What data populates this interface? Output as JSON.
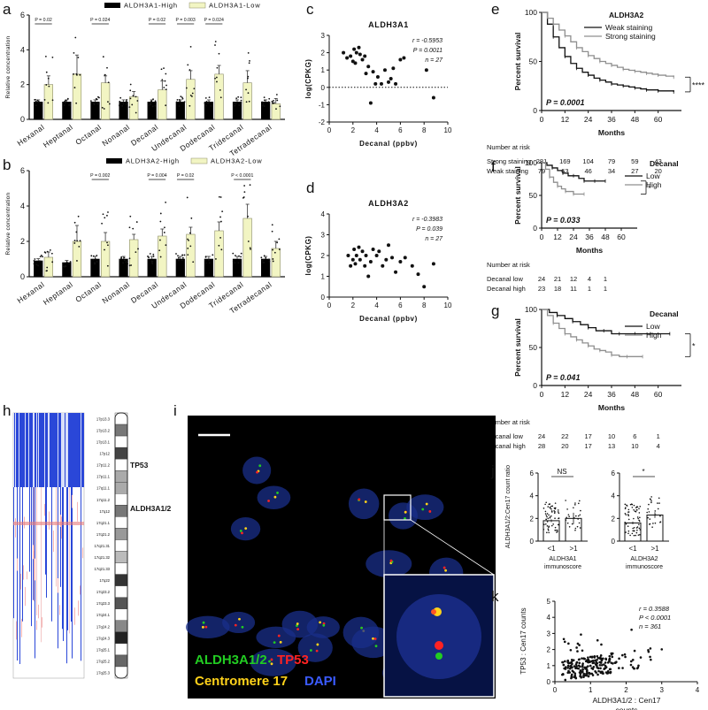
{
  "panel_letters": [
    "a",
    "b",
    "c",
    "d",
    "e",
    "f",
    "g",
    "h",
    "i",
    "j",
    "k"
  ],
  "colors": {
    "high": "#000000",
    "low": "#f2f5c3",
    "low_stroke": "#8a8a66",
    "grey": "#8f8f8f",
    "blue": "#2a47d8",
    "dapi": "#1a2f8a"
  },
  "chart_data": [
    {
      "id": "a",
      "type": "bar",
      "ylabel": "Relative concentration",
      "ylim": [
        0,
        6
      ],
      "yticks": [
        0,
        2,
        4,
        6
      ],
      "legend": [
        "ALDH3A1-High",
        "ALDH3A1-Low"
      ],
      "categories": [
        "Hexanal",
        "Heptanal",
        "Octanal",
        "Nonanal",
        "Decanal",
        "Undecanal",
        "Dodecanal",
        "Tridecanal",
        "Tetradecanal"
      ],
      "series": [
        {
          "name": "ALDH3A1-High",
          "values": [
            1.0,
            1.0,
            1.0,
            1.0,
            1.0,
            1.0,
            1.0,
            1.0,
            1.0
          ],
          "err": [
            0.12,
            0.12,
            0.12,
            0.12,
            0.12,
            0.12,
            0.12,
            0.12,
            0.12
          ]
        },
        {
          "name": "ALDH3A1-Low",
          "values": [
            2.0,
            2.6,
            2.1,
            1.3,
            1.7,
            2.3,
            2.6,
            2.1,
            0.9
          ],
          "err": [
            0.5,
            1.1,
            0.4,
            0.3,
            0.5,
            0.5,
            0.5,
            0.7,
            0.3
          ]
        }
      ],
      "pvalues": [
        {
          "cat": 0,
          "label": "P = 0.02"
        },
        {
          "cat": 2,
          "label": "P = 0.024"
        },
        {
          "cat": 4,
          "label": "P = 0.02"
        },
        {
          "cat": 5,
          "label": "P = 0.003"
        },
        {
          "cat": 6,
          "label": "P = 0.024"
        }
      ]
    },
    {
      "id": "b",
      "type": "bar",
      "ylabel": "Relative concentration",
      "ylim": [
        0,
        6
      ],
      "yticks": [
        0,
        2,
        4,
        6
      ],
      "legend": [
        "ALDH3A2-High",
        "ALDH3A2-Low"
      ],
      "categories": [
        "Hexanal",
        "Heptanal",
        "Octanal",
        "Nonanal",
        "Decanal",
        "Undecanal",
        "Dodecanal",
        "Tridecanal",
        "Tetradecanal"
      ],
      "series": [
        {
          "name": "ALDH3A2-High",
          "values": [
            0.9,
            0.8,
            1.0,
            1.0,
            1.0,
            1.0,
            1.0,
            1.0,
            1.0
          ],
          "err": [
            0.12,
            0.12,
            0.15,
            0.15,
            0.15,
            0.15,
            0.15,
            0.15,
            0.15
          ]
        },
        {
          "name": "ALDH3A2-Low",
          "values": [
            1.1,
            2.0,
            2.0,
            2.1,
            2.3,
            2.4,
            2.6,
            3.3,
            1.6
          ],
          "err": [
            0.3,
            0.9,
            0.5,
            0.3,
            0.4,
            0.4,
            0.5,
            0.8,
            0.4
          ]
        }
      ],
      "pvalues": [
        {
          "cat": 2,
          "label": "P = 0.002"
        },
        {
          "cat": 4,
          "label": "P = 0.004"
        },
        {
          "cat": 5,
          "label": "P = 0.02"
        },
        {
          "cat": 7,
          "label": "P < 0.0001"
        }
      ]
    },
    {
      "id": "c",
      "type": "scatter",
      "title": "ALDH3A1",
      "xlabel": "Decanal (ppbv)",
      "ylabel": "log(CPKG)",
      "xlim": [
        0,
        10
      ],
      "ylim": [
        -2,
        3
      ],
      "xticks": [
        0,
        2,
        4,
        6,
        8,
        10
      ],
      "yticks": [
        -2,
        -1,
        0,
        1,
        2,
        3
      ],
      "stats": [
        "r = -0.5953",
        "P = 0.0011",
        "n = 27"
      ],
      "points": [
        [
          1.2,
          2.0
        ],
        [
          1.5,
          1.7
        ],
        [
          1.8,
          1.8
        ],
        [
          2.0,
          1.5
        ],
        [
          2.1,
          2.2
        ],
        [
          2.2,
          1.4
        ],
        [
          2.3,
          2.0
        ],
        [
          2.5,
          2.3
        ],
        [
          2.6,
          1.9
        ],
        [
          2.8,
          1.6
        ],
        [
          3.0,
          1.8
        ],
        [
          3.1,
          0.8
        ],
        [
          3.3,
          1.2
        ],
        [
          3.5,
          -0.9
        ],
        [
          3.7,
          0.9
        ],
        [
          3.9,
          0.2
        ],
        [
          4.1,
          0.6
        ],
        [
          4.4,
          0.2
        ],
        [
          4.7,
          1.0
        ],
        [
          5.0,
          0.3
        ],
        [
          5.2,
          0.5
        ],
        [
          5.4,
          1.1
        ],
        [
          5.6,
          0.2
        ],
        [
          6.0,
          1.6
        ],
        [
          6.3,
          1.7
        ],
        [
          8.2,
          1.0
        ],
        [
          8.8,
          -0.6
        ]
      ]
    },
    {
      "id": "d",
      "type": "scatter",
      "title": "ALDH3A2",
      "xlabel": "Decanal (ppbv)",
      "ylabel": "log(CPKG)",
      "xlim": [
        0,
        10
      ],
      "ylim": [
        0,
        4
      ],
      "xticks": [
        0,
        2,
        4,
        6,
        8,
        10
      ],
      "yticks": [
        0,
        1,
        2,
        3,
        4
      ],
      "stats": [
        "r = -0.3983",
        "P = 0.039",
        "n = 27"
      ],
      "points": [
        [
          1.6,
          2.0
        ],
        [
          1.8,
          1.5
        ],
        [
          2.0,
          1.8
        ],
        [
          2.1,
          2.3
        ],
        [
          2.2,
          1.6
        ],
        [
          2.3,
          2.0
        ],
        [
          2.5,
          2.4
        ],
        [
          2.6,
          1.8
        ],
        [
          2.8,
          2.2
        ],
        [
          3.0,
          1.5
        ],
        [
          3.1,
          2.0
        ],
        [
          3.3,
          1.0
        ],
        [
          3.5,
          1.7
        ],
        [
          3.7,
          2.3
        ],
        [
          4.0,
          2.0
        ],
        [
          4.2,
          2.2
        ],
        [
          4.5,
          1.5
        ],
        [
          4.8,
          1.8
        ],
        [
          5.0,
          2.5
        ],
        [
          5.3,
          1.9
        ],
        [
          5.6,
          1.2
        ],
        [
          6.0,
          1.7
        ],
        [
          6.4,
          1.9
        ],
        [
          7.0,
          1.5
        ],
        [
          7.5,
          1.1
        ],
        [
          8.0,
          0.5
        ],
        [
          8.8,
          1.6
        ]
      ]
    },
    {
      "id": "e",
      "type": "line",
      "ylabel": "Percent survival",
      "xlabel": "Months",
      "xlim": [
        0,
        72
      ],
      "ylim": [
        0,
        100
      ],
      "xticks": [
        0,
        12,
        24,
        36,
        48,
        60
      ],
      "yticks": [
        0,
        50,
        100
      ],
      "legend_title": "ALDH3A2",
      "legend": [
        "Weak staining",
        "Strong staining"
      ],
      "pvalue": "P = 0.0001",
      "sig": "****",
      "series": [
        {
          "name": "Weak staining",
          "x": [
            0,
            3,
            6,
            9,
            12,
            15,
            18,
            21,
            24,
            27,
            30,
            33,
            36,
            39,
            42,
            45,
            48,
            51,
            54,
            57,
            60,
            64,
            68
          ],
          "y": [
            100,
            88,
            75,
            64,
            55,
            48,
            43,
            39,
            36,
            33,
            31,
            29,
            27,
            26,
            25,
            24,
            23,
            22,
            21,
            21,
            20,
            20,
            19
          ]
        },
        {
          "name": "Strong staining",
          "x": [
            0,
            3,
            6,
            9,
            12,
            15,
            18,
            21,
            24,
            27,
            30,
            33,
            36,
            39,
            42,
            45,
            48,
            51,
            54,
            57,
            60,
            64,
            68
          ],
          "y": [
            100,
            94,
            88,
            82,
            76,
            70,
            64,
            60,
            56,
            53,
            50,
            48,
            46,
            44,
            42,
            41,
            40,
            39,
            38,
            37,
            36,
            35,
            34
          ]
        }
      ],
      "risk_title": "Number at risk",
      "risk_rows": [
        {
          "label": "Strong staining",
          "values": [
            "281",
            "169",
            "104",
            "79",
            "59",
            "43"
          ]
        },
        {
          "label": "Weak staining",
          "values": [
            "79",
            "63",
            "46",
            "34",
            "27",
            "20"
          ]
        }
      ]
    },
    {
      "id": "f",
      "type": "line",
      "ylabel": "Percent survival",
      "xlabel": "Months",
      "xlim": [
        0,
        72
      ],
      "ylim": [
        0,
        100
      ],
      "xticks": [
        0,
        12,
        24,
        36,
        48,
        60
      ],
      "yticks": [
        0,
        50,
        100
      ],
      "legend_title": "Decanal",
      "legend": [
        "Low",
        "High"
      ],
      "pvalue": "P = 0.033",
      "sig": "*",
      "series": [
        {
          "name": "Low",
          "x": [
            0,
            4,
            8,
            12,
            16,
            20,
            24,
            28,
            32,
            36,
            40,
            44,
            48
          ],
          "y": [
            100,
            96,
            92,
            88,
            84,
            80,
            80,
            76,
            72,
            72,
            72,
            72,
            72
          ]
        },
        {
          "name": "High",
          "x": [
            0,
            3,
            6,
            9,
            12,
            15,
            18,
            21,
            24,
            28,
            32
          ],
          "y": [
            100,
            90,
            78,
            70,
            64,
            60,
            56,
            56,
            52,
            52,
            52
          ]
        }
      ],
      "risk_title": "Number at risk",
      "risk_rows": [
        {
          "label": "Decanal low",
          "values": [
            "24",
            "21",
            "12",
            "4",
            "1"
          ]
        },
        {
          "label": "Decanal high",
          "values": [
            "23",
            "18",
            "11",
            "1",
            "1"
          ]
        }
      ]
    },
    {
      "id": "g",
      "type": "line",
      "ylabel": "Percent survival",
      "xlabel": "Months",
      "xlim": [
        0,
        72
      ],
      "ylim": [
        0,
        100
      ],
      "xticks": [
        0,
        12,
        24,
        36,
        48,
        60
      ],
      "yticks": [
        0,
        50,
        100
      ],
      "legend_title": "Decanal",
      "legend": [
        "Low",
        "High"
      ],
      "pvalue": "P = 0.041",
      "sig": "*",
      "series": [
        {
          "name": "Low",
          "x": [
            0,
            4,
            8,
            12,
            16,
            20,
            24,
            28,
            32,
            36,
            40,
            44,
            48,
            52,
            56,
            60,
            66
          ],
          "y": [
            100,
            96,
            92,
            88,
            84,
            80,
            76,
            72,
            72,
            68,
            68,
            68,
            68,
            68,
            68,
            68,
            68
          ]
        },
        {
          "name": "High",
          "x": [
            0,
            3,
            6,
            9,
            12,
            15,
            18,
            21,
            24,
            27,
            30,
            33,
            36,
            40,
            44,
            48,
            52
          ],
          "y": [
            100,
            92,
            82,
            75,
            68,
            64,
            60,
            56,
            52,
            48,
            46,
            44,
            40,
            38,
            38,
            38,
            38
          ]
        }
      ],
      "risk_title": "Number at risk",
      "risk_rows": [
        {
          "label": "Decanal low",
          "values": [
            "24",
            "22",
            "17",
            "10",
            "6",
            "1"
          ]
        },
        {
          "label": "Decanal high",
          "values": [
            "28",
            "20",
            "17",
            "13",
            "10",
            "4"
          ]
        }
      ]
    },
    {
      "id": "j",
      "type": "scatter",
      "ylabel": "ALDH3A1/2:Cen17 count ratio",
      "subplots": [
        {
          "xlabel": "ALDH3A1 immunoscore",
          "categories": [
            "<1",
            ">1"
          ],
          "means": [
            1.8,
            2.0
          ],
          "err": [
            0.12,
            0.5
          ],
          "sig": "NS"
        },
        {
          "xlabel": "ALDH3A2 immunoscore",
          "categories": [
            "<1",
            ">1"
          ],
          "means": [
            1.6,
            2.3
          ],
          "err": [
            0.12,
            0.25
          ],
          "sig": "*"
        }
      ],
      "ylim": [
        0,
        6
      ],
      "yticks": [
        0,
        2,
        4,
        6
      ]
    },
    {
      "id": "k",
      "type": "scatter",
      "ylabel": "TP53 : Cen17 counts",
      "xlabel": "ALDH3A1/2 : Cen17 counts",
      "xlim": [
        0,
        4
      ],
      "ylim": [
        0,
        5
      ],
      "xticks": [
        0,
        1,
        2,
        3,
        4
      ],
      "yticks": [
        0,
        1,
        2,
        3,
        4,
        5
      ],
      "stats": [
        "r = 0.3588",
        "P < 0.0001",
        "n = 361"
      ]
    }
  ],
  "chromosome": {
    "bands": [
      "17p13.3",
      "17p13.2",
      "17p13.1",
      "17p12",
      "17p11.2",
      "17p11.1",
      "17q11.1",
      "17q11.2",
      "17q12",
      "17q21.1",
      "17q21.2",
      "17q21.31",
      "17q21.32",
      "17q21.33",
      "17q22",
      "17q23.2",
      "17q23.3",
      "17q24.1",
      "17q24.2",
      "17q24.3",
      "17q25.1",
      "17q25.2",
      "17q25.3"
    ],
    "genes": [
      "TP53",
      "ALDH3A1/2"
    ]
  },
  "fish": {
    "legend": [
      {
        "text": "ALDH3A1/2",
        "color": "#22cc22"
      },
      {
        "text": "TP53",
        "color": "#ff2222"
      },
      {
        "text": "Centromere 17",
        "color": "#ffd21a"
      },
      {
        "text": "DAPI",
        "color": "#3b5bff"
      }
    ]
  }
}
